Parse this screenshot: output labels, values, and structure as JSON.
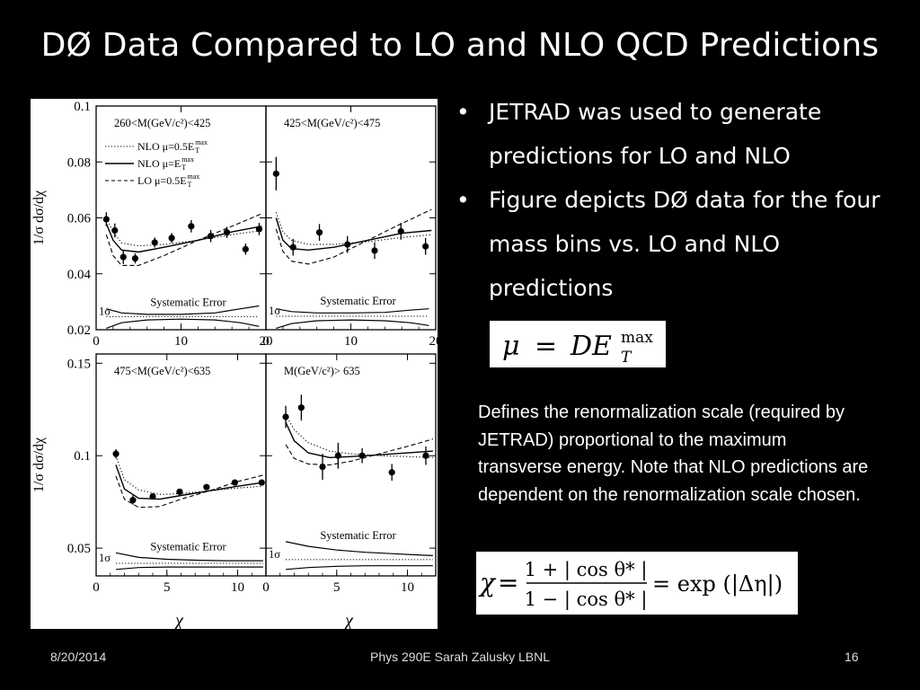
{
  "title": "DØ Data Compared to LO and NLO QCD Predictions",
  "bullets": [
    "JETRAD was used to generate predictions for LO and NLO",
    "Figure depicts DØ data for the four mass bins vs. LO and NLO predictions"
  ],
  "description": "Defines the renormalization scale (required by JETRAD) proportional  to the maximum transverse energy. Note that NLO predictions are dependent on the renormalization scale chosen.",
  "footer": {
    "date": "8/20/2014",
    "center": "Phys 290E Sarah Zalusky LBNL",
    "page": "16"
  },
  "equations": {
    "mu": {
      "lhs": "μ",
      "eq": "=",
      "rhs": "DE",
      "sup": "max",
      "sub": "T"
    },
    "chi": {
      "lhs": "χ",
      "num": "1 + | cos θ* |",
      "den": "1 − | cos θ* |",
      "rhs": "= exp (|Δη|)"
    }
  },
  "chart_data": [
    {
      "type": "scatter",
      "panel": "top-left",
      "mass_label": "260<M(GeV/c²)<425",
      "ylabel": "1/σ dσ/dχ",
      "xlabel": "",
      "xlim": [
        0,
        20
      ],
      "ylim": [
        0.02,
        0.1
      ],
      "xticks": [
        "0",
        "10",
        "20"
      ],
      "yticks": [
        "0.02",
        "0.04",
        "0.06",
        "0.08",
        "0.1"
      ],
      "legend": [
        {
          "style": "dotted",
          "label": "NLO μ=0.5E",
          "sup": "max",
          "sub": "T"
        },
        {
          "style": "solid",
          "label": "NLO μ=E",
          "sup": "max",
          "sub": "T"
        },
        {
          "style": "dashed",
          "label": "LO μ=0.5E",
          "sup": "max",
          "sub": "T"
        }
      ],
      "systematic_label": "Systematic Error",
      "sigma_label": "1σ",
      "data": {
        "x": [
          1.2,
          2.2,
          3.2,
          4.6,
          6.9,
          8.9,
          11.2,
          13.5,
          15.4,
          17.6,
          19.2
        ],
        "y": [
          0.0595,
          0.0555,
          0.046,
          0.0455,
          0.0512,
          0.0528,
          0.057,
          0.0535,
          0.0548,
          0.0488,
          0.056
        ],
        "err": [
          0.0025,
          0.0025,
          0.0025,
          0.0018,
          0.0018,
          0.0018,
          0.0022,
          0.0022,
          0.002,
          0.002,
          0.0022
        ]
      },
      "curves": {
        "nlo_half": {
          "x": [
            1.2,
            2,
            3,
            5,
            8,
            12,
            16,
            19.5
          ],
          "y": [
            0.06,
            0.055,
            0.051,
            0.05,
            0.0505,
            0.052,
            0.054,
            0.0555
          ]
        },
        "nlo_full": {
          "x": [
            1.2,
            2,
            3,
            5,
            8,
            12,
            16,
            19.5
          ],
          "y": [
            0.058,
            0.052,
            0.0485,
            0.0478,
            0.0495,
            0.052,
            0.055,
            0.057
          ]
        },
        "lo_half": {
          "x": [
            1.2,
            2,
            3,
            5,
            8,
            12,
            16,
            19.5
          ],
          "y": [
            0.054,
            0.0465,
            0.043,
            0.043,
            0.0465,
            0.052,
            0.057,
            0.0615
          ]
        }
      },
      "syst": {
        "x": [
          1.2,
          3,
          6,
          10,
          14,
          17,
          19.2
        ],
        "upper": [
          0.0275,
          0.026,
          0.0255,
          0.0255,
          0.026,
          0.0275,
          0.0285
        ],
        "lower": [
          0.0205,
          0.0225,
          0.0235,
          0.0238,
          0.0235,
          0.0225,
          0.0212
        ],
        "sigma": 0.0247
      }
    },
    {
      "type": "scatter",
      "panel": "top-right",
      "mass_label": "425<M(GeV/c²)<475",
      "ylabel": "",
      "xlabel": "",
      "xlim": [
        0,
        20
      ],
      "ylim": [
        0.02,
        0.1
      ],
      "xticks": [
        "0",
        "10",
        "20"
      ],
      "systematic_label": "Systematic Error",
      "sigma_label": "1σ",
      "data": {
        "x": [
          1.2,
          3.2,
          6.3,
          9.6,
          12.8,
          15.9,
          18.8
        ],
        "y": [
          0.0758,
          0.0495,
          0.0548,
          0.0505,
          0.0483,
          0.0552,
          0.0498
        ],
        "err": [
          0.006,
          0.003,
          0.003,
          0.003,
          0.003,
          0.003,
          0.003
        ]
      },
      "curves": {
        "nlo_half": {
          "x": [
            1.2,
            2,
            3,
            5,
            8,
            12,
            16,
            19.5
          ],
          "y": [
            0.062,
            0.055,
            0.052,
            0.0505,
            0.0505,
            0.0515,
            0.053,
            0.054
          ]
        },
        "nlo_full": {
          "x": [
            1.2,
            2,
            3,
            5,
            8,
            12,
            16,
            19.5
          ],
          "y": [
            0.06,
            0.052,
            0.049,
            0.0485,
            0.0495,
            0.052,
            0.0545,
            0.0555
          ]
        },
        "lo_half": {
          "x": [
            1.2,
            2,
            3,
            5,
            8,
            12,
            16,
            19.5
          ],
          "y": [
            0.056,
            0.048,
            0.0445,
            0.0435,
            0.046,
            0.052,
            0.058,
            0.063
          ]
        }
      },
      "syst": {
        "x": [
          1.2,
          3,
          6,
          10,
          14,
          17,
          19.2
        ],
        "upper": [
          0.0275,
          0.0265,
          0.026,
          0.026,
          0.0262,
          0.027,
          0.0275
        ],
        "lower": [
          0.0205,
          0.0222,
          0.0232,
          0.0235,
          0.0232,
          0.0225,
          0.0215
        ],
        "sigma": 0.0248
      }
    },
    {
      "type": "scatter",
      "panel": "bottom-left",
      "mass_label": "475<M(GeV/c²)<635",
      "ylabel": "1/σ dσ/dχ",
      "xlabel": "χ",
      "xlim": [
        0,
        12
      ],
      "ylim": [
        0.035,
        0.155
      ],
      "xticks": [
        "0",
        "5",
        "10"
      ],
      "yticks": [
        "0.05",
        "0.1",
        "0.15"
      ],
      "systematic_label": "Systematic Error",
      "sigma_label": "1σ",
      "data": {
        "x": [
          1.4,
          2.6,
          4,
          5.9,
          7.8,
          9.8,
          11.7
        ],
        "y": [
          0.101,
          0.076,
          0.078,
          0.0805,
          0.083,
          0.0855,
          0.0855
        ],
        "err": [
          0.0025,
          0.0025,
          0.0015,
          0.0015,
          0.0015,
          0.0015,
          0.0015
        ]
      },
      "curves": {
        "nlo_half": {
          "x": [
            1.4,
            2,
            3,
            4.5,
            6,
            8,
            10,
            11.8
          ],
          "y": [
            0.1,
            0.087,
            0.0815,
            0.079,
            0.0795,
            0.081,
            0.0825,
            0.0835
          ]
        },
        "nlo_full": {
          "x": [
            1.4,
            2,
            3,
            4.5,
            6,
            8,
            10,
            11.8
          ],
          "y": [
            0.095,
            0.082,
            0.077,
            0.0765,
            0.0785,
            0.081,
            0.0835,
            0.0855
          ]
        },
        "lo_half": {
          "x": [
            1.4,
            2,
            3,
            4.5,
            6,
            8,
            10,
            11.8
          ],
          "y": [
            0.089,
            0.0765,
            0.072,
            0.0725,
            0.0765,
            0.081,
            0.086,
            0.0895
          ]
        }
      },
      "syst": {
        "x": [
          1.4,
          3,
          5,
          7,
          9,
          11,
          11.8
        ],
        "upper": [
          0.0475,
          0.045,
          0.044,
          0.0435,
          0.0432,
          0.0432,
          0.0432
        ],
        "lower": [
          0.0385,
          0.0395,
          0.0398,
          0.0398,
          0.0398,
          0.0398,
          0.0398
        ],
        "sigma": 0.0418
      }
    },
    {
      "type": "scatter",
      "panel": "bottom-right",
      "mass_label": "M(GeV/c²)> 635",
      "ylabel": "",
      "xlabel": "χ",
      "xlim": [
        0,
        12
      ],
      "ylim": [
        0.035,
        0.155
      ],
      "xticks": [
        "0",
        "5",
        "10"
      ],
      "systematic_label": "Systematic Error",
      "sigma_label": "1σ",
      "data": {
        "x": [
          1.4,
          2.5,
          4,
          5.1,
          6.8,
          8.9,
          11.3
        ],
        "y": [
          0.121,
          0.126,
          0.094,
          0.1,
          0.1,
          0.091,
          0.1
        ],
        "err": [
          0.006,
          0.007,
          0.007,
          0.007,
          0.004,
          0.0045,
          0.005
        ]
      },
      "curves": {
        "nlo_half": {
          "x": [
            1.4,
            2,
            3,
            4.5,
            6,
            8,
            10,
            11.8
          ],
          "y": [
            0.122,
            0.114,
            0.107,
            0.1025,
            0.101,
            0.1,
            0.0995,
            0.099
          ]
        },
        "nlo_full": {
          "x": [
            1.4,
            2,
            3,
            4.5,
            6,
            8,
            10,
            11.8
          ],
          "y": [
            0.118,
            0.108,
            0.1015,
            0.099,
            0.0995,
            0.1005,
            0.1015,
            0.1025
          ]
        },
        "lo_half": {
          "x": [
            1.4,
            2,
            3,
            4.5,
            6,
            8,
            10,
            11.8
          ],
          "y": [
            0.106,
            0.0985,
            0.0955,
            0.095,
            0.097,
            0.101,
            0.105,
            0.109
          ]
        }
      },
      "syst": {
        "x": [
          1.4,
          3,
          5,
          7,
          9,
          11,
          11.8
        ],
        "upper": [
          0.0535,
          0.051,
          0.049,
          0.0478,
          0.047,
          0.0462,
          0.046
        ],
        "lower": [
          0.0385,
          0.0395,
          0.0402,
          0.0405,
          0.0405,
          0.0405,
          0.0405
        ],
        "sigma": 0.0438
      }
    }
  ]
}
